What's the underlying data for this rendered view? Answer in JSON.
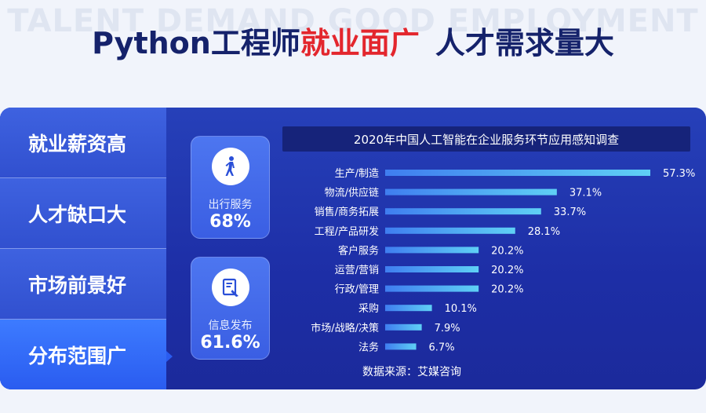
{
  "header": {
    "watermark": "TALENT DEMAND GOOD EMPLOYMENT",
    "title_part1": "Python工程师",
    "title_part2": "就业面广",
    "title_part3": "人才需求量大"
  },
  "sidebar": {
    "items": [
      {
        "label": "就业薪资高",
        "active": false
      },
      {
        "label": "人才缺口大",
        "active": false
      },
      {
        "label": "市场前景好",
        "active": false
      },
      {
        "label": "分布范围广",
        "active": true
      }
    ]
  },
  "cards": [
    {
      "label": "出行服务",
      "value": "68%",
      "icon": "person-walking-icon"
    },
    {
      "label": "信息发布",
      "value": "61.6%",
      "icon": "document-edit-icon"
    }
  ],
  "chart_data": {
    "type": "bar",
    "orientation": "horizontal",
    "title": "2020年中国人工智能在企业服务环节应用感知调查",
    "categories": [
      "生产/制造",
      "物流/供应链",
      "销售/商务拓展",
      "工程/产品研发",
      "客户服务",
      "运营/营销",
      "行政/管理",
      "采购",
      "市场/战略/决策",
      "法务"
    ],
    "values": [
      57.3,
      37.1,
      33.7,
      28.1,
      20.2,
      20.2,
      20.2,
      10.1,
      7.9,
      6.7
    ],
    "value_labels": [
      "57.3%",
      "37.1%",
      "33.7%",
      "28.1%",
      "20.2%",
      "20.2%",
      "20.2%",
      "10.1%",
      "7.9%",
      "6.7%"
    ],
    "xlim": [
      0,
      57.3
    ],
    "grid": false,
    "source": "数据来源：艾媒咨询",
    "colors": {
      "bar_start": "#3f7df0",
      "bar_end": "#5fd0f5",
      "text": "#ffffff"
    }
  }
}
